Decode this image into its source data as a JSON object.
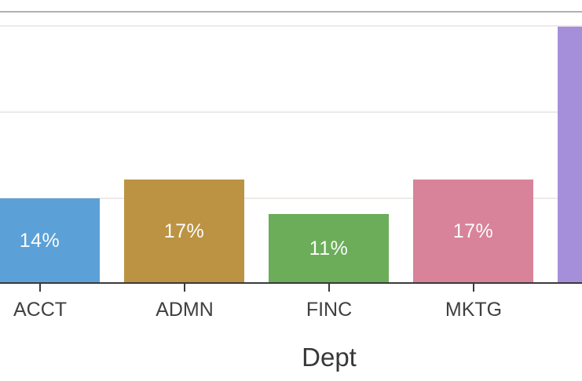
{
  "chart_data": {
    "type": "bar",
    "title": "",
    "xlabel": "Dept",
    "ylabel": "",
    "grid": true,
    "legend": false,
    "ylim_visible_units": [
      0,
      16
    ],
    "gridline_units": [
      5,
      10,
      15
    ],
    "categories": [
      "ACCT",
      "ADMN",
      "FINC",
      "MKTG"
    ],
    "bar_labels": [
      "14%",
      "17%",
      "11%",
      "17%"
    ],
    "values_pct": [
      14,
      17,
      11,
      17
    ],
    "bars": [
      {
        "category": "ACCT",
        "label": "14%",
        "value_units_est": 5,
        "color": "#5ba1d7",
        "note": "left edge cut off by crop"
      },
      {
        "category": "ADMN",
        "label": "17%",
        "value_units_est": 6,
        "color": "#bc9342",
        "note": ""
      },
      {
        "category": "FINC",
        "label": "11%",
        "value_units_est": 4,
        "color": "#6bad59",
        "note": ""
      },
      {
        "category": "MKTG",
        "label": "17%",
        "value_units_est": 6,
        "color": "#d8839a",
        "note": ""
      },
      {
        "category": "",
        "label": "",
        "value_units_est": 15,
        "color": "#a58fdb",
        "note": "partially visible at right edge, label and tick off-screen"
      }
    ]
  },
  "colors": {
    "background": "#ffffff",
    "gridline": "#eeeae6",
    "top_divider": "#b2b0ad",
    "axis": "#3a3a3a",
    "tick_label_text": "#404040",
    "axis_title_text": "#383838",
    "bar_label_text": "#fbfbfb"
  }
}
